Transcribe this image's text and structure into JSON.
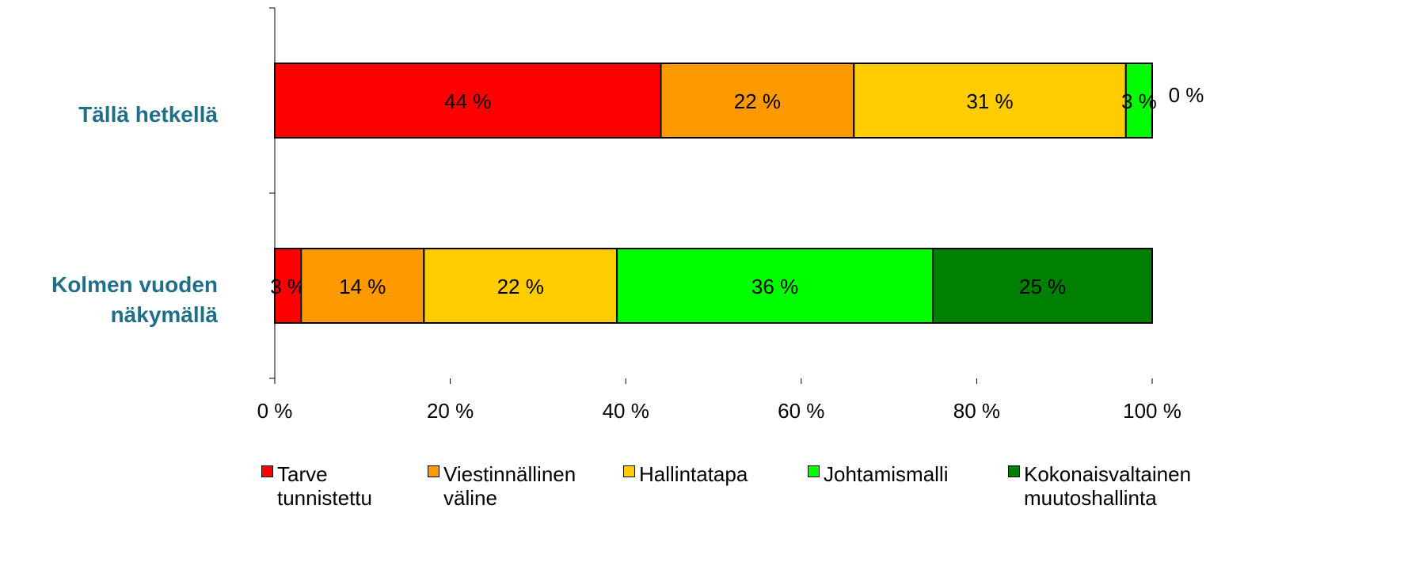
{
  "chart_data": {
    "type": "stacked-bar-horizontal",
    "categories": [
      "Tällä hetkellä",
      "Kolmen vuoden näkymällä"
    ],
    "series": [
      {
        "name": "Tarve tunnistettu",
        "color": "#ff0000",
        "values": [
          44,
          3
        ],
        "value_labels": [
          "44 %",
          "3 %"
        ]
      },
      {
        "name": "Viestinnällinen väline",
        "color": "#ff9900",
        "values": [
          22,
          14
        ],
        "value_labels": [
          "22 %",
          "14 %"
        ]
      },
      {
        "name": "Hallintatapa",
        "color": "#ffcc00",
        "values": [
          31,
          22
        ],
        "value_labels": [
          "31 %",
          "22 %"
        ]
      },
      {
        "name": "Johtamismalli",
        "color": "#00ff00",
        "values": [
          3,
          36
        ],
        "value_labels": [
          "3 %",
          "36 %"
        ]
      },
      {
        "name": "Kokonaisvaltainen muutoshallinta",
        "color": "#008000",
        "values": [
          0,
          25
        ],
        "value_labels": [
          "0 %",
          "25 %"
        ]
      }
    ],
    "xlim": [
      0,
      100
    ],
    "xticks": [
      {
        "value": 0,
        "label": "0 %"
      },
      {
        "value": 20,
        "label": "20 %"
      },
      {
        "value": 40,
        "label": "40 %"
      },
      {
        "value": 60,
        "label": "60 %"
      },
      {
        "value": 80,
        "label": "80 %"
      },
      {
        "value": 100,
        "label": "100 %"
      }
    ],
    "legend": "bottom"
  }
}
